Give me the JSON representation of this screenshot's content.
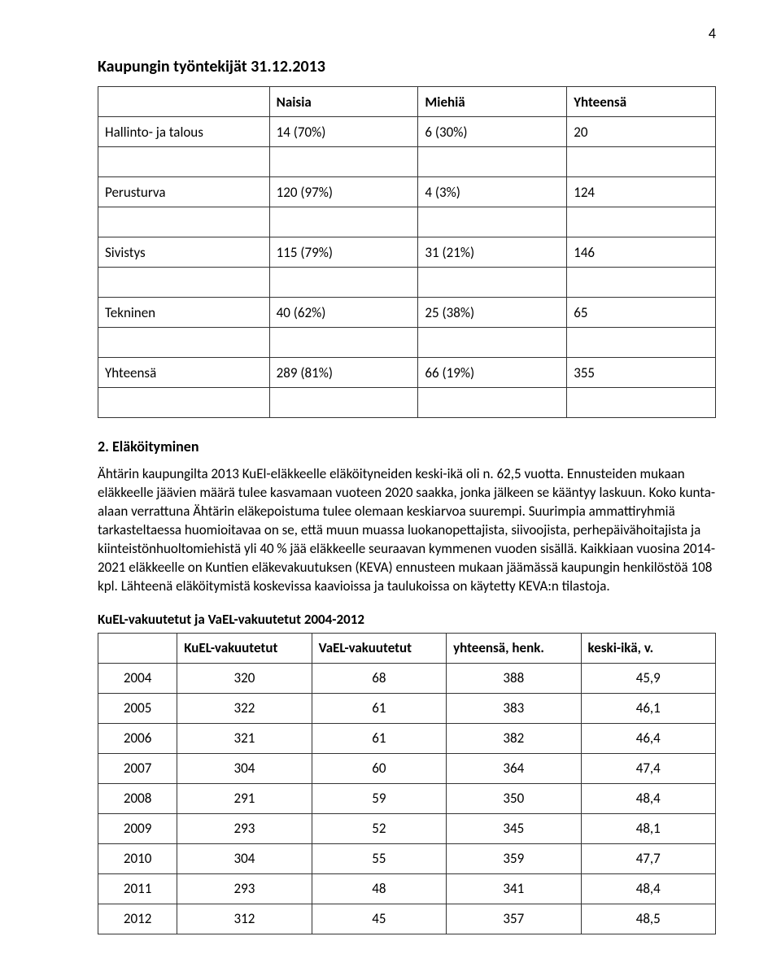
{
  "page_number": "4",
  "title": "Kaupungin työntekijät 31.12.2013",
  "table1": {
    "headers": [
      "",
      "Naisia",
      "Miehiä",
      "Yhteensä"
    ],
    "rows": [
      [
        "Hallinto- ja talous",
        "14 (70%)",
        "6 (30%)",
        "20"
      ],
      [
        "Perusturva",
        "120 (97%)",
        "4 (3%)",
        "124"
      ],
      [
        "Sivistys",
        "115 (79%)",
        "31 (21%)",
        "146"
      ],
      [
        "Tekninen",
        "40 (62%)",
        "25 (38%)",
        "65"
      ],
      [
        "Yhteensä",
        "289 (81%)",
        "66 (19%)",
        "355"
      ]
    ]
  },
  "section2": {
    "heading": "2. Eläköityminen",
    "paragraph": "Ähtärin kaupungilta 2013 KuEl-eläkkeelle eläköityneiden keski-ikä oli n. 62,5 vuotta. Ennusteiden mukaan eläkkeelle jäävien määrä tulee kasvamaan vuoteen 2020 saakka, jonka jälkeen se kääntyy laskuun. Koko kunta-alaan verrattuna Ähtärin eläkepoistuma tulee olemaan keskiarvoa suurempi. Suurimpia ammattiryhmiä tarkasteltaessa huomioitavaa on se, että muun muassa luokanopettajista, siivoojista, perhepäivähoitajista ja kiinteistönhuoltomiehistä yli 40 % jää eläkkeelle seuraavan kymmenen vuoden sisällä. Kaikkiaan vuosina 2014-2021 eläkkeelle on Kuntien eläkevakuutuksen (KEVA) ennusteen mukaan jäämässä kaupungin henkilöstöä 108 kpl. Lähteenä eläköitymistä koskevissa kaavioissa ja taulukoissa on käytetty KEVA:n tilastoja."
  },
  "table2": {
    "title": "KuEL-vakuutetut ja VaEL-vakuutetut 2004-2012",
    "headers": [
      "",
      "KuEL-vakuutetut",
      "VaEL-vakuutetut",
      "yhteensä, henk.",
      "keski-ikä, v."
    ],
    "rows": [
      [
        "2004",
        "320",
        "68",
        "388",
        "45,9"
      ],
      [
        "2005",
        "322",
        "61",
        "383",
        "46,1"
      ],
      [
        "2006",
        "321",
        "61",
        "382",
        "46,4"
      ],
      [
        "2007",
        "304",
        "60",
        "364",
        "47,4"
      ],
      [
        "2008",
        "291",
        "59",
        "350",
        "48,4"
      ],
      [
        "2009",
        "293",
        "52",
        "345",
        "48,1"
      ],
      [
        "2010",
        "304",
        "55",
        "359",
        "47,7"
      ],
      [
        "2011",
        "293",
        "48",
        "341",
        "48,4"
      ],
      [
        "2012",
        "312",
        "45",
        "357",
        "48,5"
      ]
    ]
  }
}
